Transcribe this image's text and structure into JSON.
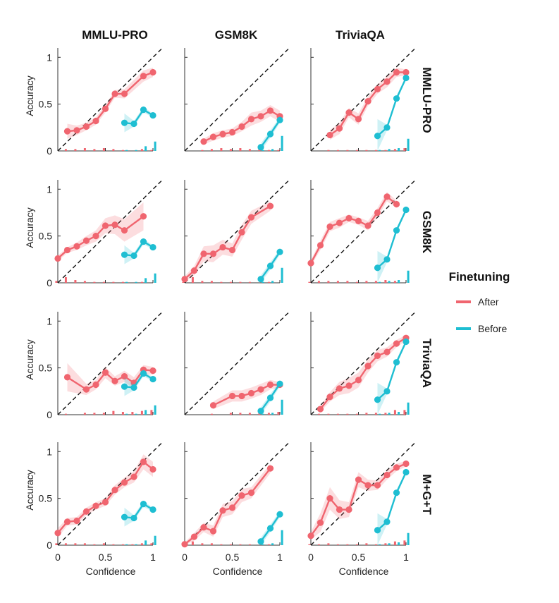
{
  "figure": {
    "legend_title": "Finetuning",
    "x_label": "Confidence",
    "y_label": "Accuracy"
  },
  "chart_data": {
    "type": "line",
    "col_titles": [
      "MMLU-PRO",
      "GSM8K",
      "TriviaQA"
    ],
    "row_titles": [
      "MMLU-PRO",
      "GSM8K",
      "TriviaQA",
      "M+G+T"
    ],
    "x_ticks": [
      "0",
      "0.5",
      "1"
    ],
    "y_ticks": [
      "0",
      "0.5",
      "1"
    ],
    "xlim": [
      0,
      1
    ],
    "ylim": [
      0,
      1.1
    ],
    "series_names": [
      "After",
      "Before"
    ],
    "colors": {
      "after": "#f0656f",
      "before": "#1ebed2"
    },
    "panels": [
      [
        {
          "after": {
            "x": [
              0.1,
              0.2,
              0.3,
              0.4,
              0.5,
              0.6,
              0.7,
              0.9,
              1.0
            ],
            "y": [
              0.21,
              0.22,
              0.26,
              0.32,
              0.45,
              0.61,
              0.61,
              0.8,
              0.84
            ],
            "err": [
              0.08,
              0.05,
              0.04,
              0.04,
              0.04,
              0.04,
              0.05,
              0.06,
              0.05
            ],
            "bars": [
              0.02,
              0.02,
              0.03,
              0.02,
              0.03,
              0.02,
              0.01,
              0.02,
              0.01
            ]
          },
          "before": {
            "x": [
              0.7,
              0.8,
              0.9,
              1.0
            ],
            "y": [
              0.3,
              0.29,
              0.44,
              0.38
            ],
            "err": [
              0.1,
              0.03,
              0.03,
              0.02
            ],
            "bars": [
              0.01,
              0.01,
              0.05,
              0.1
            ]
          }
        },
        {
          "after": {
            "x": [
              0.2,
              0.3,
              0.4,
              0.5,
              0.6,
              0.7,
              0.8,
              0.9,
              1.0
            ],
            "y": [
              0.1,
              0.15,
              0.18,
              0.2,
              0.26,
              0.34,
              0.37,
              0.43,
              0.37
            ],
            "err": [
              0.03,
              0.04,
              0.04,
              0.04,
              0.05,
              0.07,
              0.06,
              0.06,
              0.06
            ],
            "bars": [
              0.01,
              0.02,
              0.03,
              0.02,
              0.03,
              0.02,
              0.02,
              0.01,
              0.01
            ]
          },
          "before": {
            "x": [
              0.8,
              0.9,
              1.0
            ],
            "y": [
              0.04,
              0.18,
              0.33
            ],
            "err": [
              0.04,
              0.04,
              0.03
            ],
            "bars": [
              0.01,
              0.02,
              0.16
            ]
          }
        },
        {
          "after": {
            "x": [
              0.2,
              0.3,
              0.4,
              0.5,
              0.6,
              0.7,
              0.8,
              0.9,
              1.0
            ],
            "y": [
              0.17,
              0.24,
              0.41,
              0.34,
              0.53,
              0.66,
              0.74,
              0.84,
              0.84
            ],
            "err": [
              0.05,
              0.06,
              0.05,
              0.06,
              0.05,
              0.05,
              0.06,
              0.05,
              0.03
            ],
            "bars": [
              0.01,
              0.01,
              0.01,
              0.01,
              0.01,
              0.01,
              0.01,
              0.02,
              0.03
            ]
          },
          "before": {
            "x": [
              0.7,
              0.8,
              0.9,
              1.0
            ],
            "y": [
              0.16,
              0.25,
              0.56,
              0.78
            ],
            "err": [
              0.18,
              0.03,
              0.03,
              0.02
            ],
            "bars": [
              0.01,
              0.02,
              0.03,
              0.13
            ]
          }
        }
      ],
      [
        {
          "after": {
            "x": [
              0.0,
              0.1,
              0.2,
              0.3,
              0.4,
              0.5,
              0.6,
              0.7,
              0.9
            ],
            "y": [
              0.26,
              0.35,
              0.39,
              0.45,
              0.5,
              0.61,
              0.62,
              0.56,
              0.71
            ],
            "err": [
              0.03,
              0.03,
              0.04,
              0.05,
              0.06,
              0.08,
              0.1,
              0.12,
              0.15
            ],
            "bars": [
              0.02,
              0.06,
              0.03,
              0.02,
              0.01,
              0.01,
              0.01,
              0.01,
              0.01
            ]
          },
          "before": {
            "x": [
              0.7,
              0.8,
              0.9,
              1.0
            ],
            "y": [
              0.3,
              0.29,
              0.44,
              0.38
            ],
            "err": [
              0.1,
              0.03,
              0.03,
              0.02
            ],
            "bars": [
              0.01,
              0.01,
              0.05,
              0.1
            ]
          }
        },
        {
          "after": {
            "x": [
              0.0,
              0.1,
              0.2,
              0.3,
              0.4,
              0.5,
              0.6,
              0.7,
              0.9
            ],
            "y": [
              0.04,
              0.13,
              0.31,
              0.31,
              0.38,
              0.35,
              0.54,
              0.7,
              0.82
            ],
            "err": [
              0.03,
              0.05,
              0.08,
              0.09,
              0.08,
              0.07,
              0.08,
              0.07,
              0.05
            ],
            "bars": [
              0.01,
              0.06,
              0.02,
              0.02,
              0.01,
              0.01,
              0.01,
              0.01,
              0.01
            ]
          },
          "before": {
            "x": [
              0.8,
              0.9,
              1.0
            ],
            "y": [
              0.04,
              0.18,
              0.33
            ],
            "err": [
              0.04,
              0.04,
              0.03
            ],
            "bars": [
              0.01,
              0.02,
              0.16
            ]
          }
        },
        {
          "after": {
            "x": [
              0.0,
              0.1,
              0.2,
              0.3,
              0.4,
              0.5,
              0.6,
              0.7,
              0.8,
              0.9
            ],
            "y": [
              0.21,
              0.4,
              0.6,
              0.64,
              0.69,
              0.66,
              0.61,
              0.75,
              0.92,
              0.84
            ],
            "err": [
              0.03,
              0.05,
              0.05,
              0.05,
              0.04,
              0.04,
              0.05,
              0.05,
              0.05,
              0.04
            ],
            "bars": [
              0.01,
              0.02,
              0.02,
              0.02,
              0.02,
              0.01,
              0.02,
              0.02,
              0.03,
              0.02
            ]
          },
          "before": {
            "x": [
              0.7,
              0.8,
              0.9,
              1.0
            ],
            "y": [
              0.16,
              0.25,
              0.56,
              0.78
            ],
            "err": [
              0.18,
              0.03,
              0.03,
              0.02
            ],
            "bars": [
              0.01,
              0.02,
              0.03,
              0.13
            ]
          }
        }
      ],
      [
        {
          "after": {
            "x": [
              0.1,
              0.3,
              0.4,
              0.5,
              0.6,
              0.7,
              0.8,
              0.9,
              1.0
            ],
            "y": [
              0.4,
              0.27,
              0.32,
              0.45,
              0.36,
              0.41,
              0.34,
              0.48,
              0.47
            ],
            "err": [
              0.15,
              0.06,
              0.05,
              0.06,
              0.05,
              0.06,
              0.06,
              0.05,
              0.04
            ],
            "bars": [
              0.01,
              0.02,
              0.02,
              0.02,
              0.04,
              0.03,
              0.03,
              0.04,
              0.05
            ]
          },
          "before": {
            "x": [
              0.7,
              0.8,
              0.9,
              1.0
            ],
            "y": [
              0.3,
              0.29,
              0.44,
              0.38
            ],
            "err": [
              0.1,
              0.03,
              0.03,
              0.02
            ],
            "bars": [
              0.01,
              0.01,
              0.05,
              0.1
            ]
          }
        },
        {
          "after": {
            "x": [
              0.3,
              0.5,
              0.6,
              0.7,
              0.8,
              0.9,
              1.0
            ],
            "y": [
              0.1,
              0.2,
              0.2,
              0.23,
              0.27,
              0.32,
              0.32
            ],
            "err": [
              0.04,
              0.06,
              0.06,
              0.06,
              0.06,
              0.05,
              0.03
            ],
            "bars": [
              0.01,
              0.02,
              0.02,
              0.02,
              0.02,
              0.02,
              0.03
            ]
          },
          "before": {
            "x": [
              0.8,
              0.9,
              1.0
            ],
            "y": [
              0.04,
              0.18,
              0.33
            ],
            "err": [
              0.04,
              0.04,
              0.03
            ],
            "bars": [
              0.01,
              0.02,
              0.16
            ]
          }
        },
        {
          "after": {
            "x": [
              0.1,
              0.2,
              0.3,
              0.4,
              0.5,
              0.6,
              0.7,
              0.8,
              0.9,
              1.0
            ],
            "y": [
              0.06,
              0.19,
              0.28,
              0.31,
              0.37,
              0.52,
              0.63,
              0.67,
              0.76,
              0.82
            ],
            "err": [
              0.03,
              0.05,
              0.07,
              0.08,
              0.08,
              0.07,
              0.06,
              0.05,
              0.04,
              0.03
            ],
            "bars": [
              0.01,
              0.01,
              0.01,
              0.01,
              0.01,
              0.02,
              0.02,
              0.02,
              0.05,
              0.05
            ]
          },
          "before": {
            "x": [
              0.7,
              0.8,
              0.9,
              1.0
            ],
            "y": [
              0.16,
              0.25,
              0.56,
              0.78
            ],
            "err": [
              0.18,
              0.03,
              0.03,
              0.02
            ],
            "bars": [
              0.01,
              0.02,
              0.03,
              0.13
            ]
          }
        }
      ],
      [
        {
          "after": {
            "x": [
              0.0,
              0.1,
              0.2,
              0.3,
              0.4,
              0.5,
              0.6,
              0.7,
              0.8,
              0.9,
              1.0
            ],
            "y": [
              0.13,
              0.25,
              0.26,
              0.36,
              0.42,
              0.46,
              0.59,
              0.67,
              0.73,
              0.89,
              0.81
            ],
            "err": [
              0.05,
              0.04,
              0.04,
              0.04,
              0.04,
              0.04,
              0.05,
              0.05,
              0.06,
              0.08,
              0.08
            ],
            "bars": [
              0.02,
              0.02,
              0.02,
              0.02,
              0.01,
              0.02,
              0.01,
              0.01,
              0.01,
              0.02,
              0.02
            ]
          },
          "before": {
            "x": [
              0.7,
              0.8,
              0.9,
              1.0
            ],
            "y": [
              0.3,
              0.29,
              0.44,
              0.38
            ],
            "err": [
              0.1,
              0.03,
              0.03,
              0.02
            ],
            "bars": [
              0.01,
              0.01,
              0.05,
              0.1
            ]
          }
        },
        {
          "after": {
            "x": [
              0.0,
              0.1,
              0.2,
              0.3,
              0.4,
              0.5,
              0.6,
              0.7,
              0.9
            ],
            "y": [
              0.01,
              0.09,
              0.19,
              0.15,
              0.37,
              0.4,
              0.53,
              0.56,
              0.82
            ],
            "err": [
              0.02,
              0.04,
              0.05,
              0.06,
              0.07,
              0.07,
              0.07,
              0.06,
              0.05
            ],
            "bars": [
              0.01,
              0.04,
              0.02,
              0.02,
              0.01,
              0.01,
              0.01,
              0.01,
              0.01
            ]
          },
          "before": {
            "x": [
              0.8,
              0.9,
              1.0
            ],
            "y": [
              0.04,
              0.18,
              0.33
            ],
            "err": [
              0.04,
              0.04,
              0.03
            ],
            "bars": [
              0.01,
              0.02,
              0.16
            ]
          }
        },
        {
          "after": {
            "x": [
              0.0,
              0.1,
              0.2,
              0.3,
              0.4,
              0.5,
              0.6,
              0.7,
              0.8,
              0.9,
              1.0
            ],
            "y": [
              0.1,
              0.24,
              0.5,
              0.38,
              0.38,
              0.7,
              0.64,
              0.64,
              0.75,
              0.83,
              0.87
            ],
            "err": [
              0.04,
              0.1,
              0.12,
              0.1,
              0.08,
              0.08,
              0.06,
              0.05,
              0.05,
              0.04,
              0.03
            ],
            "bars": [
              0.01,
              0.01,
              0.02,
              0.01,
              0.01,
              0.01,
              0.02,
              0.01,
              0.02,
              0.04,
              0.05
            ]
          },
          "before": {
            "x": [
              0.7,
              0.8,
              0.9,
              1.0
            ],
            "y": [
              0.16,
              0.25,
              0.56,
              0.78
            ],
            "err": [
              0.18,
              0.03,
              0.03,
              0.02
            ],
            "bars": [
              0.01,
              0.02,
              0.03,
              0.13
            ]
          }
        }
      ]
    ]
  }
}
